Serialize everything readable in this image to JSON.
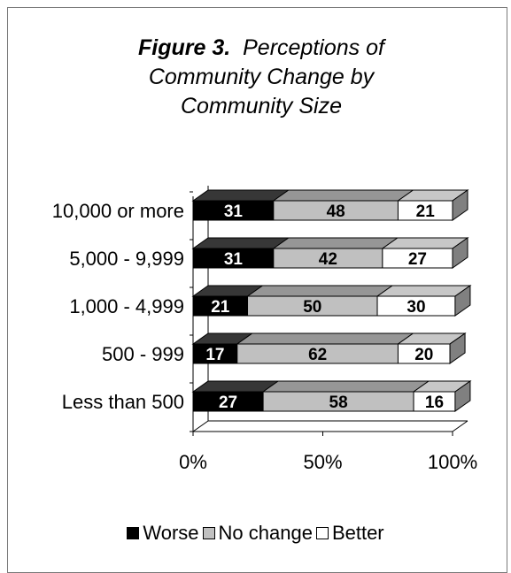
{
  "title": {
    "figure": "Figure 3.",
    "text": "Perceptions of Community Change by Community Size"
  },
  "chart_data": {
    "type": "bar",
    "orientation": "horizontal",
    "stacked": "percent",
    "style": "3d",
    "categories": [
      "10,000 or more",
      "5,000 - 9,999",
      "1,000 - 4,999",
      "500 - 999",
      "Less than 500"
    ],
    "series": [
      {
        "name": "Worse",
        "values": [
          31,
          31,
          21,
          17,
          27
        ],
        "color": "#000000",
        "label_color": "#ffffff"
      },
      {
        "name": "No change",
        "values": [
          48,
          42,
          50,
          62,
          58
        ],
        "color": "#c0c0c0",
        "label_color": "#000000"
      },
      {
        "name": "Better",
        "values": [
          21,
          27,
          30,
          20,
          16
        ],
        "color": "#ffffff",
        "label_color": "#000000"
      }
    ],
    "x_ticks": [
      "0%",
      "50%",
      "100%"
    ],
    "xlim": [
      0,
      100
    ],
    "grid": false,
    "legend_position": "bottom"
  },
  "legend": [
    {
      "label": "Worse",
      "color": "#000000"
    },
    {
      "label": "No change",
      "color": "#c0c0c0"
    },
    {
      "label": "Better",
      "color": "#ffffff"
    }
  ]
}
